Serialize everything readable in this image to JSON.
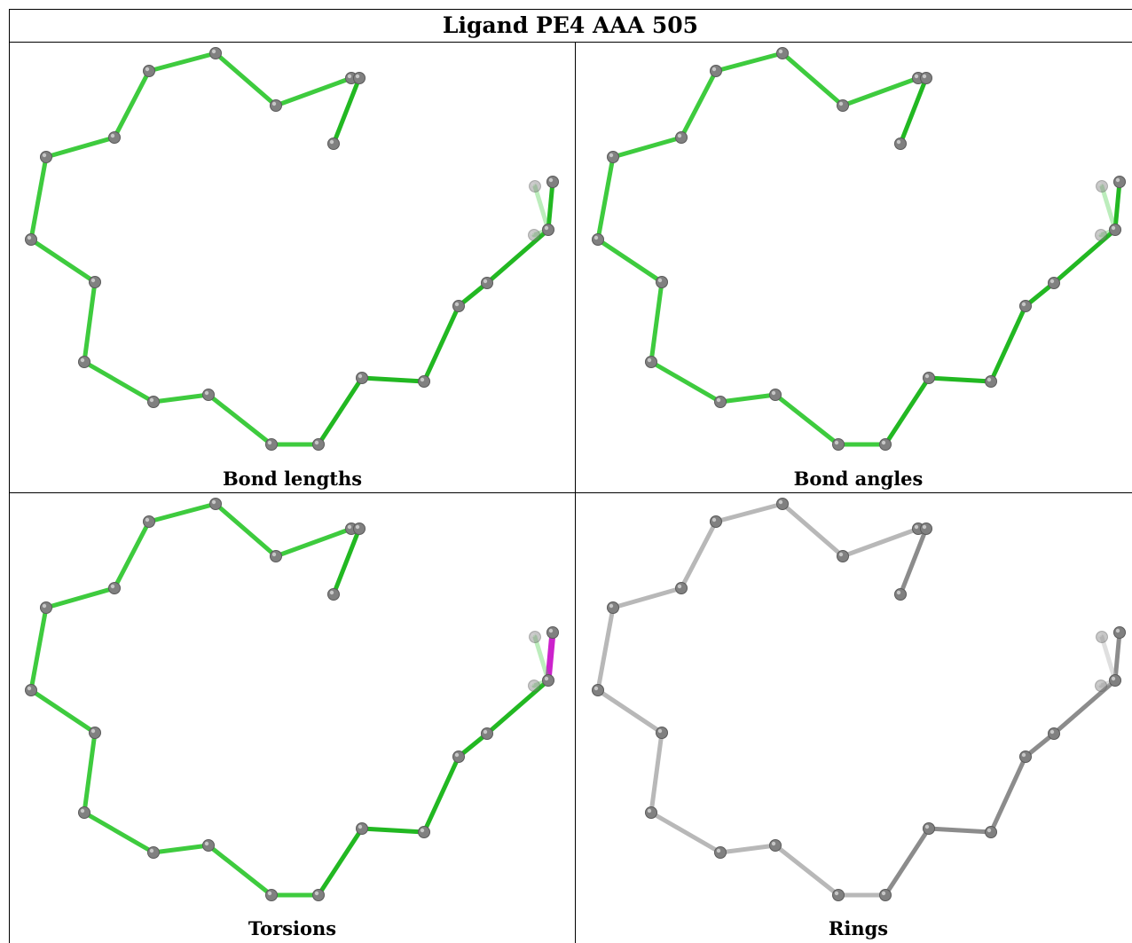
{
  "title": "Ligand PE4 AAA 505",
  "panels": [
    {
      "id": "bond-lengths",
      "caption": "Bond lengths",
      "scheme": "green"
    },
    {
      "id": "bond-angles",
      "caption": "Bond angles",
      "scheme": "green"
    },
    {
      "id": "torsions",
      "caption": "Torsions",
      "scheme": "torsion"
    },
    {
      "id": "rings",
      "caption": "Rings",
      "scheme": "grey"
    }
  ],
  "colors": {
    "atom": "#808080",
    "bond_green": "#3ecb3e",
    "bond_green_dark": "#22b822",
    "bond_outlier": "#cc22cc",
    "bond_grey": "#b8b8b8",
    "bond_grey_dark": "#8c8c8c"
  }
}
